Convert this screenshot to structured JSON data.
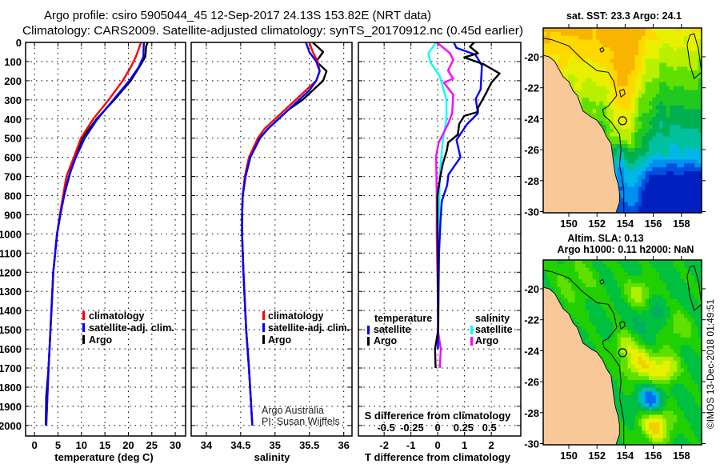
{
  "title": {
    "line1": "Argo profile: csiro 5905044_45 12-Sep-2017 24.13S 153.82E (NRT data)",
    "line2": "Climatology: CARS2009. Satellite-adjusted climatology: synTS_20170912.nc (0.45d earlier)"
  },
  "chart_data": [
    {
      "type": "line",
      "title": "",
      "xlabel": "temperature (deg C)",
      "ylabel": "",
      "xlim": [
        -1.9,
        32.2
      ],
      "ylim": [
        2055,
        0
      ],
      "xticks": [
        0,
        5,
        10,
        15,
        20,
        25,
        30
      ],
      "yticks": [
        0,
        100,
        200,
        300,
        400,
        500,
        600,
        700,
        800,
        900,
        1000,
        1100,
        1200,
        1300,
        1400,
        1500,
        1600,
        1700,
        1800,
        1900,
        2000
      ],
      "grid": true,
      "legend": {
        "placement": "lower-middle",
        "entries": [
          "climatology",
          "satellite-adj. clim.",
          "Argo"
        ]
      },
      "series": [
        {
          "name": "Argo",
          "color": "#000000",
          "depth": [
            0,
            20,
            75,
            130,
            200,
            300,
            400,
            500,
            600,
            700,
            800,
            900,
            1000,
            1200,
            1500,
            1700,
            1850,
            2000
          ],
          "values": [
            24.1,
            23.8,
            23.6,
            22.3,
            20.5,
            17.0,
            13.2,
            10.2,
            8.5,
            7.4,
            6.3,
            5.5,
            4.8,
            4.0,
            3.4,
            3.0,
            2.5,
            2.4
          ]
        },
        {
          "name": "climatology",
          "color": "#ff0000",
          "depth": [
            0,
            75,
            130,
            200,
            300,
            400,
            500,
            600,
            700,
            800,
            900,
            1000,
            1200,
            1500,
            1700,
            2000
          ],
          "values": [
            22.7,
            21.6,
            20.5,
            18.8,
            15.8,
            12.5,
            9.9,
            8.4,
            6.8,
            6.1,
            5.4,
            4.8,
            4.0,
            3.4,
            3.0,
            2.5
          ]
        },
        {
          "name": "satellite-adj. clim.",
          "color": "#0000ff",
          "depth": [
            0,
            75,
            130,
            200,
            300,
            400,
            500,
            600,
            700,
            800,
            900,
            1000,
            1200,
            1500,
            1700,
            2000
          ],
          "values": [
            23.3,
            23.2,
            22.2,
            20.2,
            16.8,
            13.4,
            10.7,
            8.8,
            7.3,
            6.3,
            5.5,
            4.8,
            4.0,
            3.4,
            3.0,
            2.5
          ]
        }
      ]
    },
    {
      "type": "line",
      "title": "",
      "xlabel": "salinity",
      "ylabel": "",
      "xlim": [
        33.78,
        36.12
      ],
      "ylim": [
        2055,
        0
      ],
      "xticks": [
        34,
        34.5,
        35,
        35.5,
        36
      ],
      "grid": true,
      "legend": {
        "placement": "lower-right",
        "entries": [
          "climatology",
          "satellite-adj. clim.",
          "Argo"
        ]
      },
      "annotation": [
        "Argo Australia",
        "PI: Susan Wijffels"
      ],
      "series": [
        {
          "name": "Argo",
          "color": "#000000",
          "depth": [
            0,
            50,
            100,
            150,
            200,
            250,
            300,
            350,
            400,
            450,
            500,
            600,
            700,
            800,
            900,
            1000,
            1200,
            1500,
            1700,
            2000
          ],
          "values": [
            35.55,
            35.7,
            35.6,
            35.75,
            35.7,
            35.55,
            35.4,
            35.2,
            35.05,
            34.9,
            34.78,
            34.64,
            34.57,
            34.53,
            34.52,
            34.52,
            34.54,
            34.58,
            34.62,
            34.67
          ]
        },
        {
          "name": "climatology",
          "color": "#ff0000",
          "depth": [
            0,
            50,
            100,
            150,
            200,
            250,
            300,
            350,
            400,
            450,
            500,
            600,
            700,
            800,
            900,
            1000,
            1200,
            1500,
            1700,
            2000
          ],
          "values": [
            35.5,
            35.55,
            35.62,
            35.65,
            35.6,
            35.45,
            35.3,
            35.15,
            35.0,
            34.85,
            34.75,
            34.62,
            34.56,
            34.53,
            34.52,
            34.52,
            34.54,
            34.58,
            34.62,
            34.67
          ]
        },
        {
          "name": "satellite-adj. clim.",
          "color": "#0000ff",
          "depth": [
            0,
            50,
            100,
            150,
            200,
            250,
            300,
            350,
            400,
            450,
            500,
            600,
            700,
            800,
            900,
            1000,
            1200,
            1500,
            1700,
            2000
          ],
          "values": [
            35.45,
            35.5,
            35.6,
            35.65,
            35.6,
            35.5,
            35.35,
            35.2,
            35.05,
            34.9,
            34.78,
            34.64,
            34.57,
            34.53,
            34.52,
            34.52,
            34.54,
            34.58,
            34.62,
            34.67
          ]
        }
      ]
    },
    {
      "type": "line",
      "title": "",
      "xlabel": "T difference from climatology",
      "x2label": "S difference from climatology",
      "ylabel": "",
      "xlim": [
        -2.96,
        3.1
      ],
      "x2lim": [
        -0.5,
        0.5
      ],
      "ylim": [
        2055,
        0
      ],
      "xticks": [
        -2,
        -1,
        0,
        1,
        2
      ],
      "x2ticks": [
        "-0.5",
        "-0.25",
        "0",
        "0.25",
        "0.5"
      ],
      "grid": true,
      "legend": {
        "placement": "lower",
        "temperature_title": "temperature",
        "salinity_title": "salinity",
        "entries": [
          "satellite",
          "Argo",
          "satellite",
          "Argo"
        ]
      },
      "series": [
        {
          "name": "salinity satellite",
          "axis": "S",
          "color": "#00ffff",
          "depth": [
            0,
            57,
            106,
            175,
            301,
            398,
            523,
            690,
            1000,
            1300,
            1600
          ],
          "values": [
            -0.015,
            -0.09,
            -0.07,
            0.02,
            0.085,
            0.085,
            0.047,
            0.02,
            0.01,
            0.0,
            0.0
          ]
        },
        {
          "name": "salinity Argo",
          "axis": "S",
          "color": "#ff00ff",
          "depth": [
            0,
            57,
            92,
            147,
            189,
            210,
            273,
            370,
            426,
            523,
            593,
            801,
            1000,
            1300,
            1500,
            1600,
            1700
          ],
          "values": [
            -0.01,
            0.12,
            0.15,
            0.1,
            0.15,
            0.06,
            0.15,
            0.14,
            0.1,
            0.01,
            -0.015,
            -0.01,
            -0.01,
            0.0,
            0.0,
            0.03,
            0.02
          ]
        },
        {
          "name": "temperature satellite",
          "axis": "T",
          "color": "#0000ff",
          "depth": [
            0,
            29,
            64,
            120,
            245,
            294,
            370,
            426,
            509,
            600,
            690,
            746,
            829,
            941,
            1100,
            1300,
            1500,
            1600
          ],
          "values": [
            0.6,
            0.7,
            1.4,
            1.65,
            1.6,
            1.42,
            1.5,
            1.1,
            0.7,
            0.85,
            0.4,
            0.35,
            0.15,
            0.1,
            0.05,
            0.03,
            0.02,
            0.01
          ]
        },
        {
          "name": "temperature Argo",
          "axis": "T",
          "color": "#000000",
          "depth": [
            0,
            22,
            57,
            78,
            113,
            162,
            210,
            266,
            342,
            363,
            384,
            426,
            481,
            523,
            565,
            634,
            704,
            801,
            941,
            1200,
            1500,
            1600,
            1700
          ],
          "values": [
            1.36,
            1.2,
            1.5,
            0.99,
            1.7,
            2.31,
            2.0,
            1.8,
            1.5,
            1.5,
            0.99,
            0.8,
            0.75,
            0.39,
            0.34,
            0.19,
            0.09,
            -0.01,
            -0.01,
            0.0,
            0.02,
            -0.1,
            -0.08
          ]
        }
      ]
    }
  ],
  "maps": [
    {
      "title": "sat. SST: 23.3 Argo: 24.1",
      "lon_ticks": [
        "150",
        "152",
        "154",
        "156",
        "158"
      ],
      "lat_ticks": [
        "-20",
        "-22",
        "-24",
        "-26",
        "-28",
        "-30"
      ],
      "argo_position": {
        "lon": 153.82,
        "lat": -24.13
      },
      "land_color": "#f8c898"
    },
    {
      "title_line1": "Altim. SLA: 0.13",
      "title_line2": "Argo h1000: 0.11 h2000: NaN",
      "lon_ticks": [
        "150",
        "152",
        "154",
        "156",
        "158"
      ],
      "lat_ticks": [
        "-20",
        "-22",
        "-24",
        "-26",
        "-28",
        "-30"
      ],
      "argo_position": {
        "lon": 153.82,
        "lat": -24.13
      },
      "land_color": "#f8c898"
    }
  ],
  "watermark": "©IMOS 13-Dec-2018 01:49:51"
}
